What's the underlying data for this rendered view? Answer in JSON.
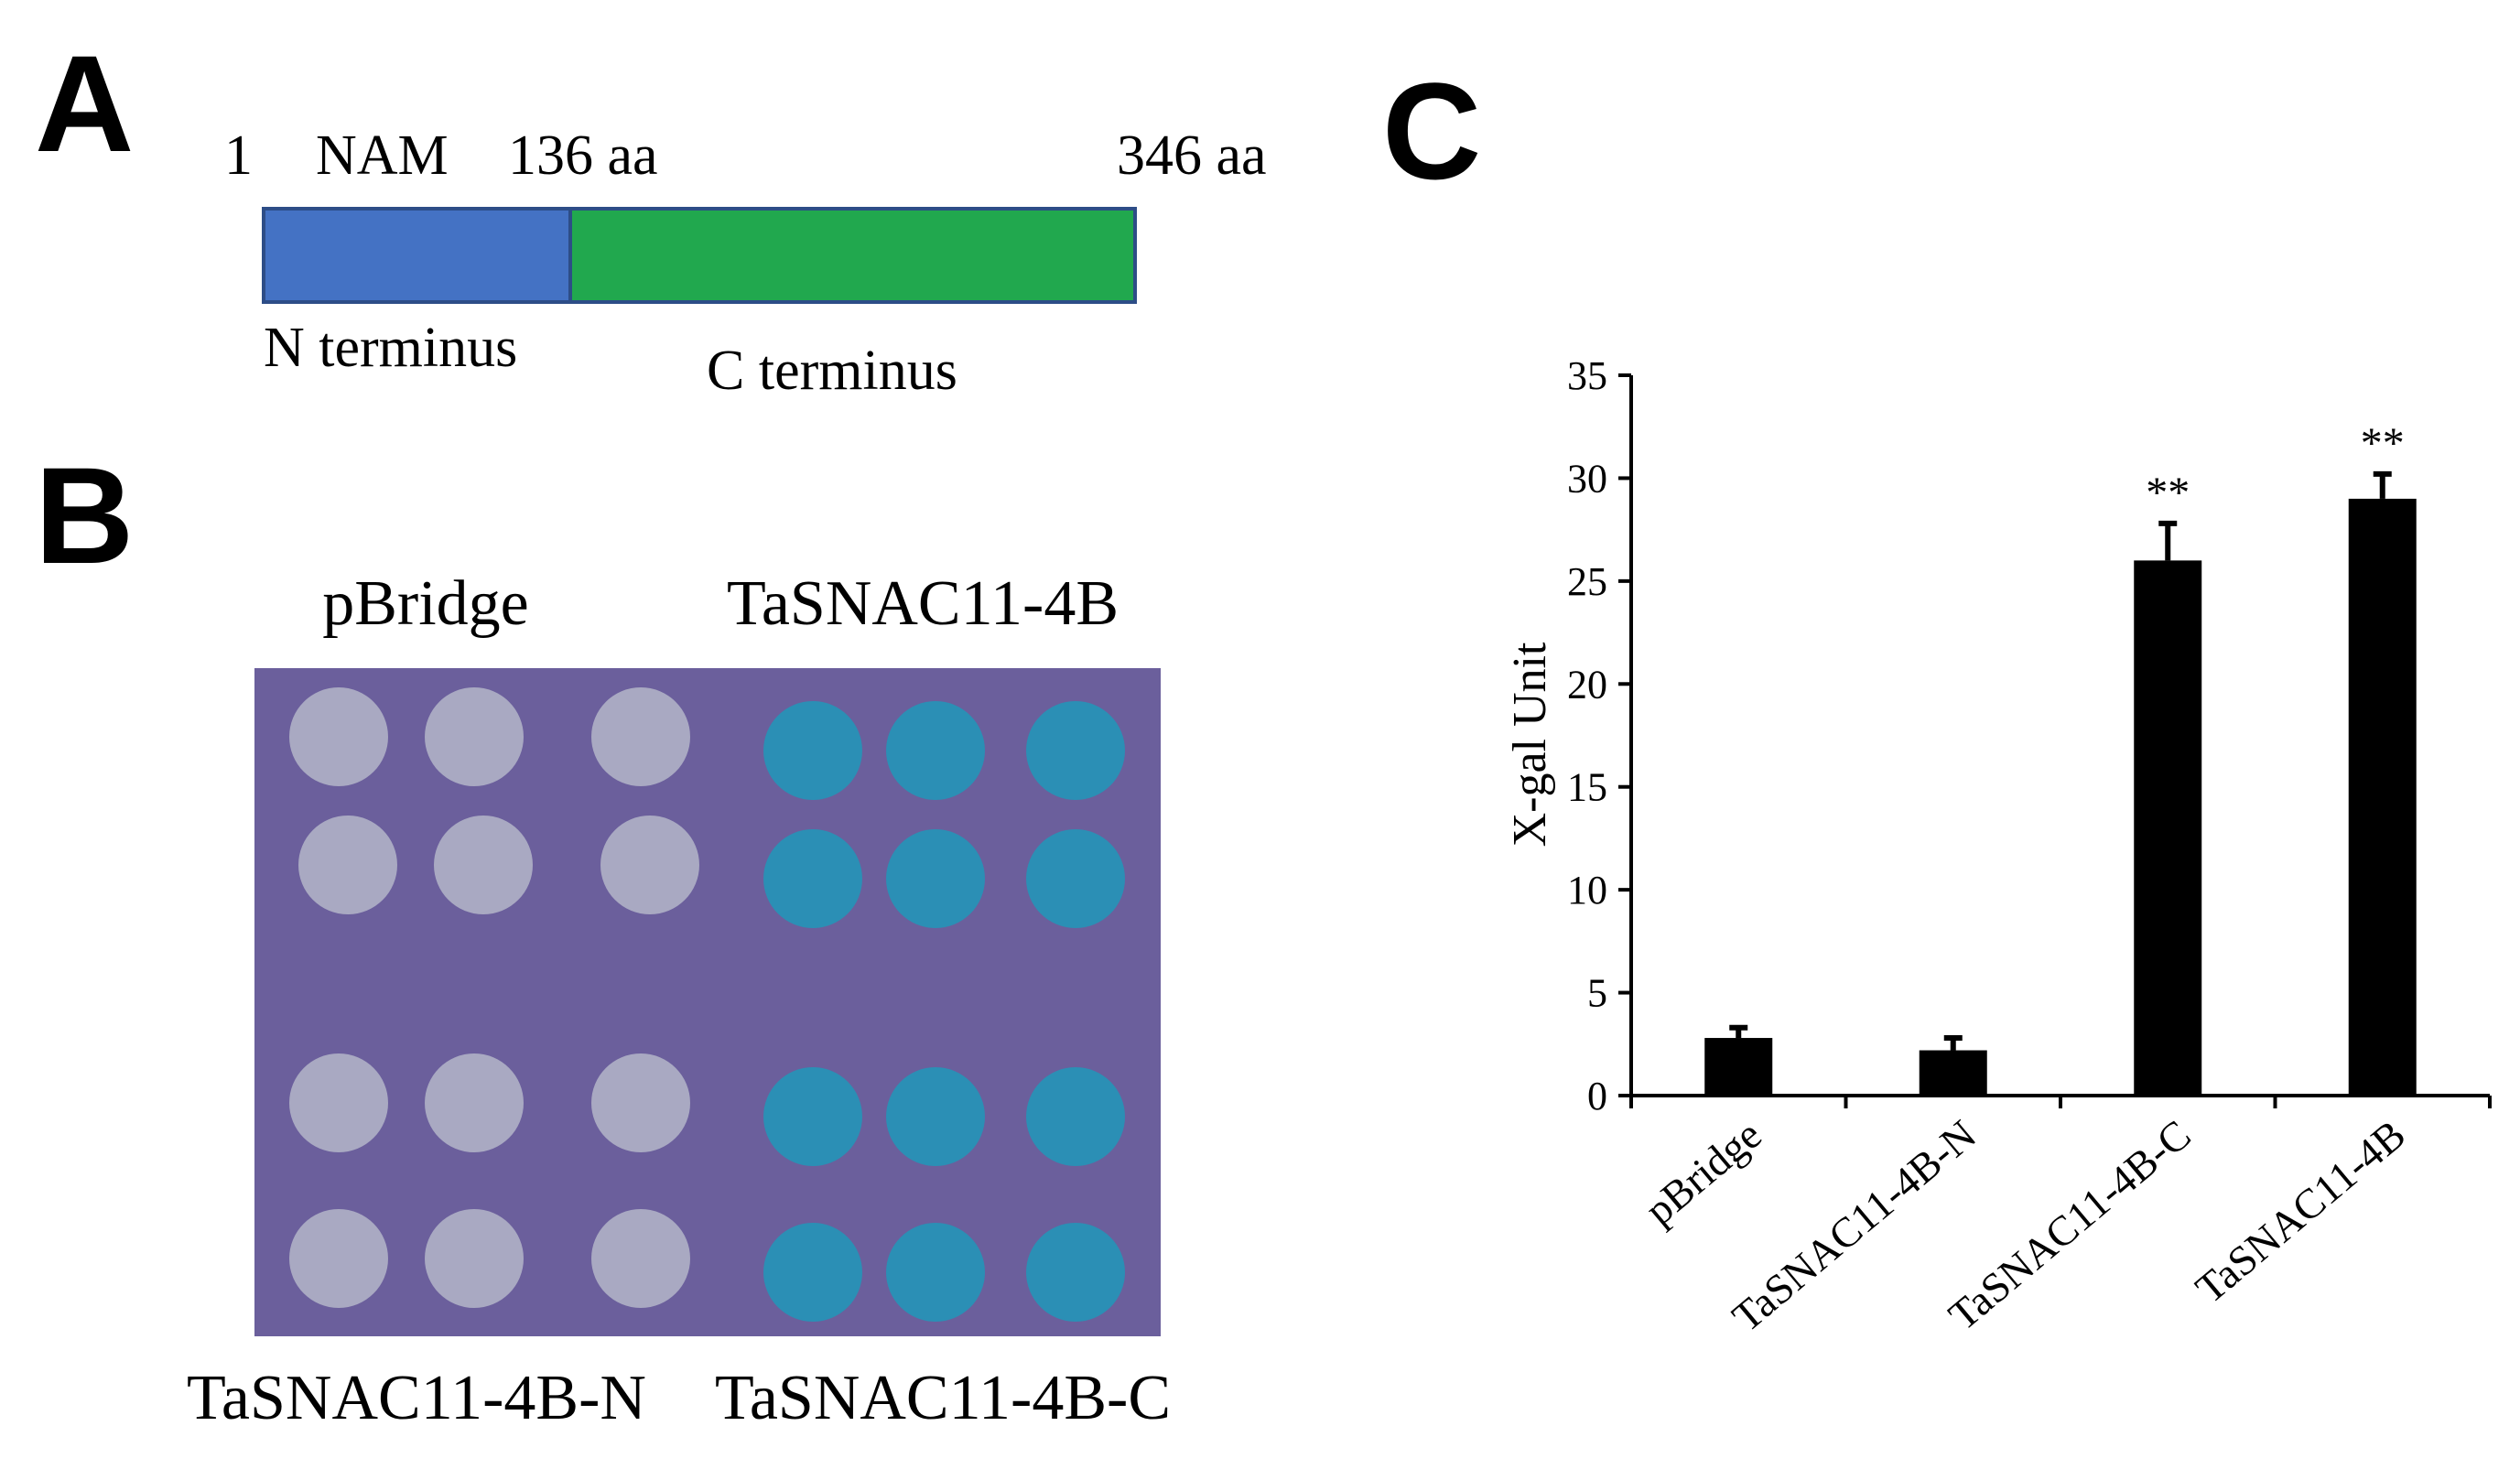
{
  "panels": {
    "a": {
      "letter": "A",
      "start": "1",
      "domain_name": "NAM",
      "split": "136 aa",
      "end": "346 aa",
      "n_label": "N terminus",
      "c_label": "C terminus",
      "n_color": "#4472c4",
      "c_color": "#21a84e",
      "total_length_aa": 346,
      "split_aa": 136
    },
    "b": {
      "letter": "B",
      "top_left": "pBridge",
      "top_right": "TaSNAC11-4B",
      "bottom_left": "TaSNAC11-4B-N",
      "bottom_right": "TaSNAC11-4B-C",
      "plate_color": "#6b5f9c",
      "white_colony_color": "#a9a9c2",
      "blue_colony_color": "#2b8fb5"
    },
    "c": {
      "letter": "C"
    }
  },
  "chart_data": {
    "type": "bar",
    "categories": [
      "pBridge",
      "TaSNAC11-4B-N",
      "TaSNAC11-4B-C",
      "TaSNAC11-4B"
    ],
    "values": [
      2.8,
      2.2,
      26.0,
      29.0
    ],
    "errors": [
      0.5,
      0.6,
      1.8,
      1.2
    ],
    "significance": [
      "",
      "",
      "**",
      "**"
    ],
    "ylabel": "X-gal Unit",
    "xlabel": "",
    "ylim": [
      0,
      35
    ],
    "yticks": [
      0,
      5,
      10,
      15,
      20,
      25,
      30,
      35
    ],
    "bar_color": "#000000",
    "grid": false
  }
}
